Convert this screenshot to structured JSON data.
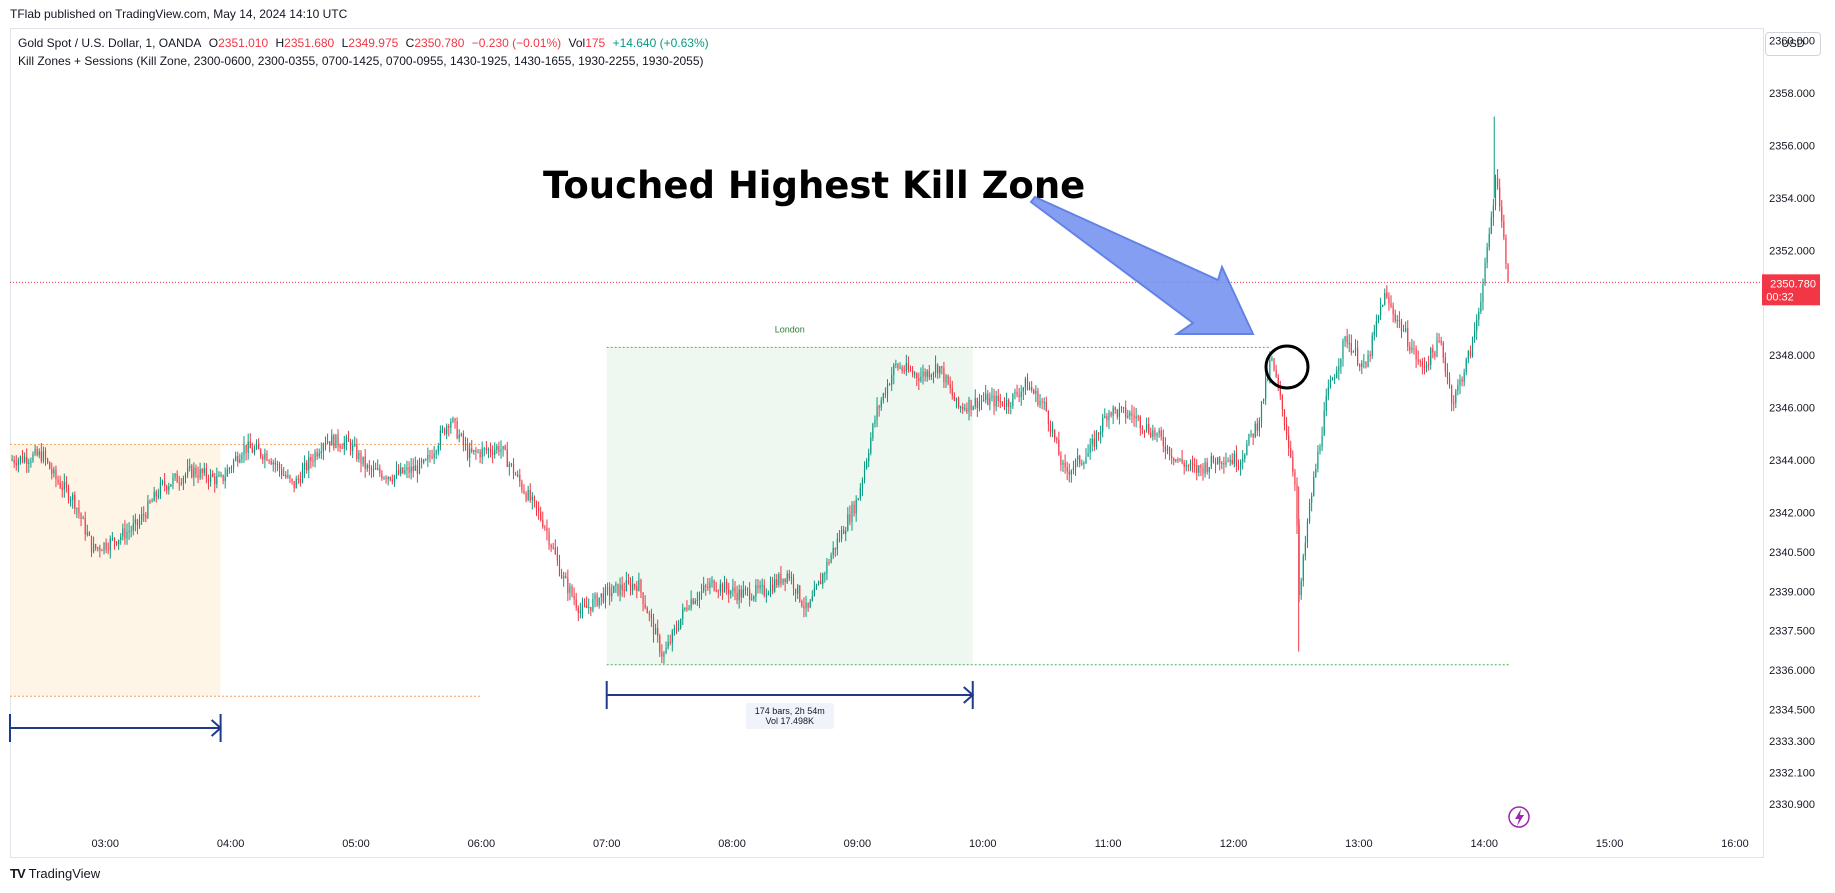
{
  "publisher_line": "TFlab published on TradingView.com, May 14, 2024 14:10 UTC",
  "symbol": {
    "name": "Gold Spot / U.S. Dollar, 1, OANDA",
    "o_label": "O",
    "o_value": "2351.010",
    "h_label": "H",
    "h_value": "2351.680",
    "l_label": "L",
    "l_value": "2349.975",
    "c_label": "C",
    "c_value": "2350.780",
    "change": "−0.230 (−0.01%)",
    "vol_label": "Vol",
    "vol_value": "175",
    "vol_change": "+14.640 (+0.63%)"
  },
  "indicator_line": "Kill Zones + Sessions (Kill Zone, 2300-0600, 2300-0355, 0700-1425, 0700-0955, 1430-1925, 1430-1655, 1930-2255, 1930-2055)",
  "currency_button": "USD",
  "footer_brand": "TradingView",
  "colors": {
    "up": "#089981",
    "down": "#f23645",
    "asia_zone": "#fff3e0",
    "london_zone": "#e8f5e9",
    "measure": "#1e3a8a",
    "arrow_fill": "#6f8ff0",
    "price_line": "#f23645"
  },
  "chart_data": {
    "type": "candlestick",
    "title": "",
    "annotation": "Touched Highest Kill Zone",
    "session_label": "London",
    "measure_label_1": "174 bars, 2h 54m",
    "measure_label_2": "Vol 17.498K",
    "last_price": "2350.780",
    "countdown": "00:32",
    "ylim": [
      2329.9,
      2360.4
    ],
    "y_ticks": [
      {
        "value": 2360.0,
        "label": "2360.000"
      },
      {
        "value": 2358.0,
        "label": "2358.000"
      },
      {
        "value": 2356.0,
        "label": "2356.000"
      },
      {
        "value": 2354.0,
        "label": "2354.000"
      },
      {
        "value": 2352.0,
        "label": "2352.000"
      },
      {
        "value": 2348.0,
        "label": "2348.000"
      },
      {
        "value": 2346.0,
        "label": "2346.000"
      },
      {
        "value": 2344.0,
        "label": "2344.000"
      },
      {
        "value": 2342.0,
        "label": "2342.000"
      },
      {
        "value": 2340.5,
        "label": "2340.500"
      },
      {
        "value": 2339.0,
        "label": "2339.000"
      },
      {
        "value": 2337.5,
        "label": "2337.500"
      },
      {
        "value": 2336.0,
        "label": "2336.000"
      },
      {
        "value": 2334.5,
        "label": "2334.500"
      },
      {
        "value": 2333.3,
        "label": "2333.300"
      },
      {
        "value": 2332.1,
        "label": "2332.100"
      },
      {
        "value": 2330.9,
        "label": "2330.900"
      }
    ],
    "x_ticks": [
      "03:00",
      "04:00",
      "05:00",
      "06:00",
      "07:00",
      "08:00",
      "09:00",
      "10:00",
      "11:00",
      "12:00",
      "13:00",
      "14:00",
      "15:00",
      "16:00"
    ],
    "x_range_hours": [
      2.24,
      16.2
    ],
    "asia_zone": {
      "start": 2.24,
      "end": 3.92,
      "high": 2344.6,
      "low": 2335.0
    },
    "london_zone": {
      "start": 7.0,
      "end": 9.92,
      "high": 2348.3,
      "low": 2336.2
    },
    "price_path": [
      [
        2.24,
        2344.0
      ],
      [
        2.5,
        2344.2
      ],
      [
        2.6,
        2343.3
      ],
      [
        2.75,
        2342.5
      ],
      [
        2.9,
        2340.6
      ],
      [
        3.05,
        2340.9
      ],
      [
        3.25,
        2341.5
      ],
      [
        3.45,
        2343.0
      ],
      [
        3.7,
        2343.6
      ],
      [
        3.92,
        2343.2
      ],
      [
        4.1,
        2344.5
      ],
      [
        4.3,
        2344.2
      ],
      [
        4.5,
        2343.0
      ],
      [
        4.75,
        2344.8
      ],
      [
        4.95,
        2344.6
      ],
      [
        5.1,
        2343.6
      ],
      [
        5.3,
        2343.4
      ],
      [
        5.55,
        2343.8
      ],
      [
        5.75,
        2345.6
      ],
      [
        5.9,
        2344.2
      ],
      [
        6.15,
        2344.5
      ],
      [
        6.3,
        2343.2
      ],
      [
        6.5,
        2341.6
      ],
      [
        6.65,
        2339.5
      ],
      [
        6.8,
        2338.2
      ],
      [
        6.95,
        2338.8
      ],
      [
        7.1,
        2339.1
      ],
      [
        7.25,
        2339.3
      ],
      [
        7.45,
        2336.5
      ],
      [
        7.65,
        2338.6
      ],
      [
        7.85,
        2339.3
      ],
      [
        8.05,
        2338.9
      ],
      [
        8.25,
        2339.0
      ],
      [
        8.45,
        2339.7
      ],
      [
        8.6,
        2338.2
      ],
      [
        8.8,
        2340.5
      ],
      [
        9.0,
        2342.5
      ],
      [
        9.15,
        2345.8
      ],
      [
        9.3,
        2347.6
      ],
      [
        9.5,
        2347.2
      ],
      [
        9.65,
        2347.6
      ],
      [
        9.8,
        2346.0
      ],
      [
        10.0,
        2346.3
      ],
      [
        10.2,
        2346.2
      ],
      [
        10.35,
        2346.9
      ],
      [
        10.5,
        2346.0
      ],
      [
        10.65,
        2343.5
      ],
      [
        10.85,
        2344.3
      ],
      [
        11.0,
        2345.9
      ],
      [
        11.2,
        2345.7
      ],
      [
        11.4,
        2344.9
      ],
      [
        11.55,
        2344.0
      ],
      [
        11.7,
        2343.6
      ],
      [
        11.9,
        2344.1
      ],
      [
        12.05,
        2344.0
      ],
      [
        12.2,
        2345.5
      ],
      [
        12.3,
        2347.9
      ],
      [
        12.4,
        2345.7
      ],
      [
        12.5,
        2343.0
      ],
      [
        12.52,
        2338.5
      ],
      [
        12.6,
        2342.0
      ],
      [
        12.75,
        2346.5
      ],
      [
        12.9,
        2348.7
      ],
      [
        13.05,
        2347.4
      ],
      [
        13.2,
        2350.3
      ],
      [
        13.35,
        2349.0
      ],
      [
        13.5,
        2347.5
      ],
      [
        13.65,
        2348.5
      ],
      [
        13.75,
        2346.2
      ],
      [
        13.9,
        2348.3
      ],
      [
        14.0,
        2351.0
      ],
      [
        14.1,
        2355.0
      ],
      [
        14.15,
        2352.6
      ],
      [
        14.2,
        2350.7
      ]
    ]
  }
}
